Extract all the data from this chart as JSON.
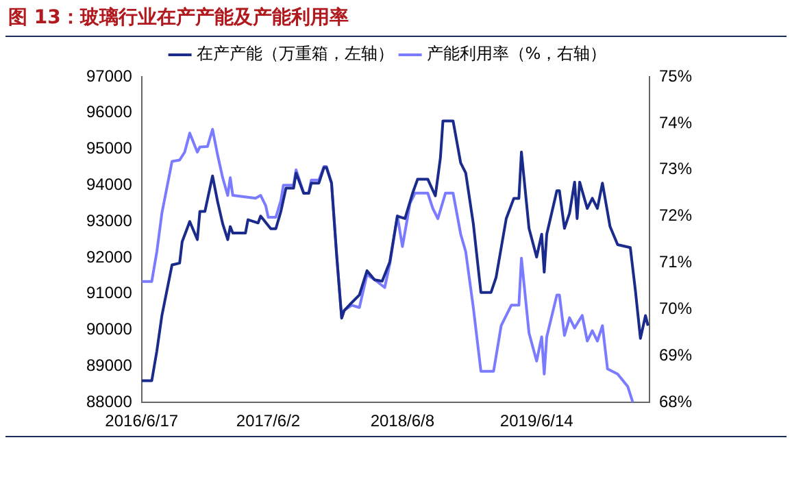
{
  "chart_data": {
    "type": "line",
    "title": "图 13：玻璃行业在产产能及产能利用率",
    "legend": "top",
    "grid": false,
    "marker": "none",
    "line_style": "solid",
    "xlim": [
      "2016-06-17",
      "2020-04-21"
    ],
    "xticks": [
      {
        "value": "2016-06-17",
        "label": "2016/6/17"
      },
      {
        "value": "2017-06-02",
        "label": "2017/6/2"
      },
      {
        "value": "2018-06-08",
        "label": "2018/6/8"
      },
      {
        "value": "2019-06-14",
        "label": "2019/6/14"
      }
    ],
    "ylim": [
      88000,
      97000
    ],
    "yticks": [
      88000,
      89000,
      90000,
      91000,
      92000,
      93000,
      94000,
      95000,
      96000,
      97000
    ],
    "y2lim": [
      68,
      75
    ],
    "y2ticks": [
      {
        "value": 68,
        "label": "68%"
      },
      {
        "value": 69,
        "label": "69%"
      },
      {
        "value": 70,
        "label": "70%"
      },
      {
        "value": 71,
        "label": "71%"
      },
      {
        "value": 72,
        "label": "72%"
      },
      {
        "value": 73,
        "label": "73%"
      },
      {
        "value": 74,
        "label": "74%"
      },
      {
        "value": 75,
        "label": "75%"
      }
    ],
    "series": [
      {
        "name": "在产产能（万重箱，左轴）",
        "color": "#1a2b8c",
        "axis": "y",
        "x": [
          "2016-06-17",
          "2016-07-15",
          "2016-07-29",
          "2016-08-12",
          "2016-09-09",
          "2016-09-30",
          "2016-10-07",
          "2016-10-28",
          "2016-11-18",
          "2016-11-25",
          "2016-12-09",
          "2016-12-30",
          "2017-01-13",
          "2017-01-27",
          "2017-02-10",
          "2017-02-17",
          "2017-02-24",
          "2017-03-31",
          "2017-04-07",
          "2017-05-05",
          "2017-05-12",
          "2017-06-09",
          "2017-06-23",
          "2017-07-07",
          "2017-07-21",
          "2017-08-11",
          "2017-08-18",
          "2017-09-08",
          "2017-09-22",
          "2017-09-29",
          "2017-10-20",
          "2017-11-03",
          "2017-11-10",
          "2017-11-24",
          "2017-12-08",
          "2017-12-22",
          "2017-12-29",
          "2018-01-19",
          "2018-02-09",
          "2018-03-02",
          "2018-03-23",
          "2018-04-13",
          "2018-05-04",
          "2018-05-25",
          "2018-06-15",
          "2018-07-06",
          "2018-07-20",
          "2018-08-17",
          "2018-09-07",
          "2018-09-21",
          "2018-09-28",
          "2018-10-26",
          "2018-11-16",
          "2018-11-30",
          "2018-12-21",
          "2019-01-11",
          "2019-02-08",
          "2019-02-22",
          "2019-03-22",
          "2019-04-12",
          "2019-04-26",
          "2019-05-03",
          "2019-05-24",
          "2019-06-14",
          "2019-06-28",
          "2019-07-05",
          "2019-07-12",
          "2019-08-09",
          "2019-08-16",
          "2019-08-30",
          "2019-09-13",
          "2019-09-27",
          "2019-10-04",
          "2019-10-11",
          "2019-11-01",
          "2019-11-15",
          "2019-11-29",
          "2019-12-13",
          "2020-01-03",
          "2020-01-24",
          "2020-02-28",
          "2020-03-13",
          "2020-03-27",
          "2020-04-10",
          "2020-04-17"
        ],
        "values": [
          88600,
          88600,
          89420,
          90400,
          91800,
          91850,
          92440,
          93000,
          92500,
          93280,
          93280,
          94260,
          93550,
          92940,
          92500,
          92860,
          92680,
          92680,
          93050,
          92960,
          93150,
          92800,
          92800,
          93280,
          93920,
          93920,
          94340,
          93780,
          93780,
          94060,
          94060,
          94490,
          94490,
          94060,
          92090,
          90330,
          90540,
          90760,
          90970,
          91640,
          91390,
          91350,
          91880,
          93150,
          93080,
          93780,
          94170,
          94170,
          93710,
          94760,
          95780,
          95780,
          94620,
          94340,
          92940,
          91040,
          91040,
          91460,
          93080,
          93640,
          93640,
          94920,
          92810,
          92020,
          92650,
          91600,
          92650,
          93850,
          93850,
          92810,
          93230,
          94090,
          93080,
          94090,
          93360,
          93640,
          93360,
          94060,
          92860,
          92360,
          92280,
          91100,
          89770,
          90400,
          90120
        ]
      },
      {
        "name": "产能利用率（%，右轴）",
        "color": "#7b7bff",
        "axis": "y2",
        "x": [
          "2016-06-17",
          "2016-07-15",
          "2016-07-29",
          "2016-08-12",
          "2016-09-09",
          "2016-09-30",
          "2016-10-14",
          "2016-10-28",
          "2016-11-18",
          "2016-11-25",
          "2016-12-16",
          "2016-12-30",
          "2017-01-13",
          "2017-01-27",
          "2017-02-10",
          "2017-02-17",
          "2017-02-24",
          "2017-04-28",
          "2017-05-12",
          "2017-05-26",
          "2017-06-02",
          "2017-06-23",
          "2017-07-07",
          "2017-07-14",
          "2017-08-11",
          "2017-08-18",
          "2017-09-08",
          "2017-09-22",
          "2017-09-29",
          "2017-10-20",
          "2017-11-03",
          "2017-11-10",
          "2017-11-24",
          "2017-12-08",
          "2017-12-22",
          "2017-12-29",
          "2018-01-19",
          "2018-02-09",
          "2018-03-02",
          "2018-03-23",
          "2018-04-20",
          "2018-05-04",
          "2018-05-25",
          "2018-06-08",
          "2018-06-29",
          "2018-07-13",
          "2018-08-17",
          "2018-08-31",
          "2018-09-14",
          "2018-10-05",
          "2018-10-26",
          "2018-11-16",
          "2018-11-30",
          "2018-12-21",
          "2019-01-11",
          "2019-02-15",
          "2019-03-08",
          "2019-04-05",
          "2019-04-26",
          "2019-05-03",
          "2019-05-24",
          "2019-06-14",
          "2019-06-28",
          "2019-07-05",
          "2019-07-12",
          "2019-08-09",
          "2019-08-16",
          "2019-08-30",
          "2019-09-13",
          "2019-09-27",
          "2019-10-18",
          "2019-11-01",
          "2019-11-15",
          "2019-11-29",
          "2019-12-13",
          "2019-12-27",
          "2020-01-24",
          "2020-02-21",
          "2020-03-06"
        ],
        "values": [
          70.6,
          70.6,
          71.24,
          72.07,
          73.18,
          73.21,
          73.38,
          73.79,
          73.38,
          73.49,
          73.5,
          73.87,
          73.32,
          72.83,
          72.45,
          72.83,
          72.45,
          72.39,
          72.45,
          72.23,
          71.98,
          71.98,
          72.34,
          72.67,
          72.67,
          73.0,
          72.5,
          72.5,
          72.78,
          72.78,
          73.07,
          73.07,
          72.72,
          71.19,
          69.82,
          69.98,
          70.09,
          70.04,
          70.75,
          70.64,
          70.47,
          70.97,
          72.01,
          71.35,
          72.28,
          72.5,
          72.5,
          72.17,
          71.95,
          72.5,
          72.5,
          71.62,
          71.24,
          70.04,
          68.67,
          68.67,
          69.65,
          70.09,
          70.09,
          71.1,
          69.49,
          68.89,
          69.41,
          68.61,
          69.41,
          70.31,
          70.31,
          69.44,
          69.82,
          69.6,
          69.87,
          69.32,
          69.54,
          69.32,
          69.65,
          68.72,
          68.61,
          68.34,
          68.0
        ]
      }
    ]
  }
}
